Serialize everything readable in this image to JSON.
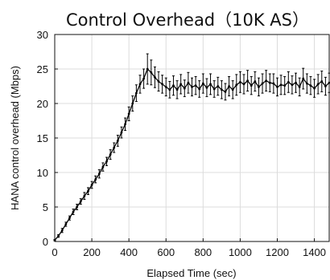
{
  "chart_data": {
    "type": "line",
    "title": "Control Overhead（10K AS）",
    "xlabel": "Elapsed Time (sec)",
    "ylabel": "HANA control overhead (Mbps)",
    "xlim": [
      0,
      1480
    ],
    "ylim": [
      0,
      30
    ],
    "xticks": [
      0,
      200,
      400,
      600,
      800,
      1000,
      1200,
      1400
    ],
    "yticks": [
      0,
      5,
      10,
      15,
      20,
      25,
      30
    ],
    "grid": true,
    "series": [
      {
        "error_bars": true,
        "x": [
          0,
          20,
          40,
          60,
          80,
          100,
          120,
          140,
          160,
          180,
          200,
          220,
          240,
          260,
          280,
          300,
          320,
          340,
          360,
          380,
          400,
          420,
          440,
          460,
          480,
          500,
          520,
          540,
          560,
          580,
          600,
          620,
          640,
          660,
          680,
          700,
          720,
          740,
          760,
          780,
          800,
          820,
          840,
          860,
          880,
          900,
          920,
          940,
          960,
          980,
          1000,
          1020,
          1040,
          1060,
          1080,
          1100,
          1120,
          1140,
          1160,
          1180,
          1200,
          1220,
          1240,
          1260,
          1280,
          1300,
          1320,
          1340,
          1360,
          1380,
          1400,
          1420,
          1440,
          1460,
          1480
        ],
        "y": [
          0.2,
          0.8,
          1.6,
          2.5,
          3.4,
          4.3,
          5.0,
          5.8,
          6.6,
          7.3,
          8.2,
          9.0,
          9.8,
          10.8,
          11.6,
          12.6,
          13.6,
          14.6,
          15.8,
          17.0,
          18.5,
          20.0,
          21.5,
          22.8,
          23.6,
          25.0,
          24.5,
          23.8,
          23.2,
          22.8,
          22.4,
          22.0,
          22.6,
          22.0,
          22.8,
          22.2,
          23.0,
          22.4,
          22.6,
          22.1,
          22.9,
          22.3,
          22.8,
          22.1,
          22.5,
          22.0,
          21.7,
          22.5,
          22.0,
          22.7,
          23.1,
          22.8,
          23.3,
          22.6,
          23.2,
          22.4,
          22.9,
          23.3,
          23.0,
          22.9,
          22.4,
          22.7,
          22.6,
          23.1,
          22.7,
          23.0,
          22.4,
          23.6,
          22.9,
          22.6,
          22.2,
          22.8,
          23.2,
          22.5,
          23.0
        ],
        "err": [
          0.1,
          0.2,
          0.3,
          0.3,
          0.3,
          0.4,
          0.4,
          0.4,
          0.5,
          0.5,
          0.5,
          0.5,
          0.6,
          0.6,
          0.6,
          0.7,
          0.7,
          0.8,
          0.8,
          0.9,
          1.0,
          1.1,
          1.2,
          1.3,
          1.4,
          2.2,
          1.8,
          1.5,
          1.4,
          1.3,
          1.3,
          1.2,
          1.4,
          1.3,
          1.4,
          1.2,
          1.5,
          1.3,
          1.3,
          1.2,
          1.4,
          1.3,
          1.5,
          1.2,
          1.3,
          1.3,
          1.2,
          1.4,
          1.3,
          1.5,
          1.5,
          1.4,
          1.5,
          1.3,
          1.4,
          1.3,
          1.4,
          1.5,
          1.3,
          1.4,
          1.3,
          1.4,
          1.3,
          1.5,
          1.3,
          1.4,
          1.3,
          1.5,
          1.4,
          1.3,
          1.3,
          1.4,
          1.5,
          1.3,
          1.4
        ]
      }
    ]
  }
}
